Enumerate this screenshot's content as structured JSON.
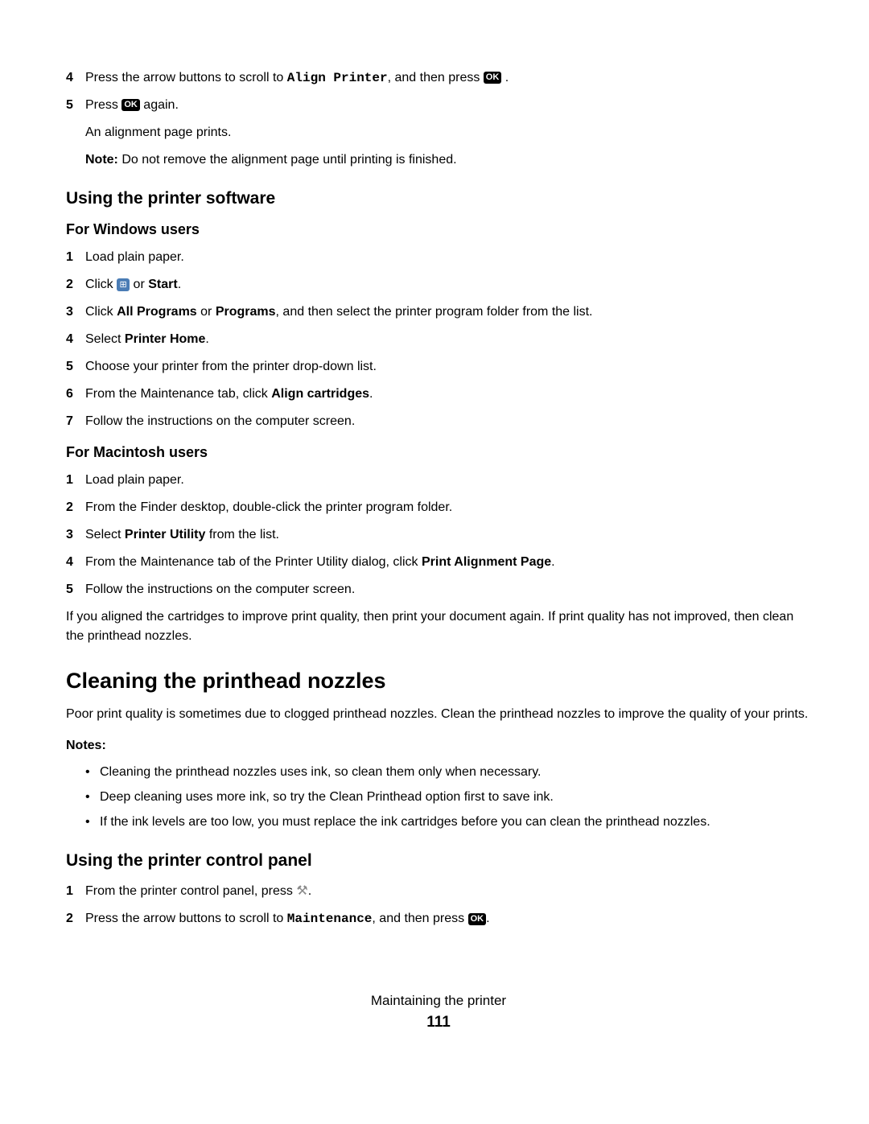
{
  "steps_top": {
    "s4": {
      "num": "4",
      "pre": "Press the arrow buttons to scroll to ",
      "mono": "Align Printer",
      "mid": ", and then press ",
      "ok": "OK",
      "post": " ."
    },
    "s5": {
      "num": "5",
      "pre": "Press ",
      "ok": "OK",
      "post": " again."
    },
    "s5_sub1": "An alignment page prints.",
    "s5_sub2_label": "Note: ",
    "s5_sub2_text": "Do not remove the alignment page until printing is finished."
  },
  "h2_software": "Using the printer software",
  "h3_windows": "For Windows users",
  "windows": {
    "s1": {
      "num": "1",
      "text": "Load plain paper."
    },
    "s2": {
      "num": "2",
      "pre": "Click ",
      "post_a": " or ",
      "bold": "Start",
      "post_b": "."
    },
    "s3": {
      "num": "3",
      "pre": "Click ",
      "b1": "All Programs",
      "mid": " or ",
      "b2": "Programs",
      "post": ", and then select the printer program folder from the list."
    },
    "s4": {
      "num": "4",
      "pre": "Select ",
      "bold": "Printer Home",
      "post": "."
    },
    "s5": {
      "num": "5",
      "text": "Choose your printer from the printer drop-down list."
    },
    "s6": {
      "num": "6",
      "pre": "From the Maintenance tab, click ",
      "bold": "Align cartridges",
      "post": "."
    },
    "s7": {
      "num": "7",
      "text": "Follow the instructions on the computer screen."
    }
  },
  "h3_mac": "For Macintosh users",
  "mac": {
    "s1": {
      "num": "1",
      "text": "Load plain paper."
    },
    "s2": {
      "num": "2",
      "text": "From the Finder desktop, double-click the printer program folder."
    },
    "s3": {
      "num": "3",
      "pre": "Select ",
      "bold": "Printer Utility",
      "post": " from the list."
    },
    "s4": {
      "num": "4",
      "pre": "From the Maintenance tab of the Printer Utility dialog, click ",
      "bold": "Print Alignment Page",
      "post": "."
    },
    "s5": {
      "num": "5",
      "text": "Follow the instructions on the computer screen."
    }
  },
  "para_after_mac": "If you aligned the cartridges to improve print quality, then print your document again. If print quality has not improved, then clean the printhead nozzles.",
  "h1_cleaning": "Cleaning the printhead nozzles",
  "para_cleaning": "Poor print quality is sometimes due to clogged printhead nozzles. Clean the printhead nozzles to improve the quality of your prints.",
  "notes_label": "Notes:",
  "notes": {
    "b1": "Cleaning the printhead nozzles uses ink, so clean them only when necessary.",
    "b2": "Deep cleaning uses more ink, so try the Clean Printhead option first to save ink.",
    "b3": "If the ink levels are too low, you must replace the ink cartridges before you can clean the printhead nozzles."
  },
  "h2_panel": "Using the printer control panel",
  "panel": {
    "s1": {
      "num": "1",
      "pre": "From the printer control panel, press ",
      "post": "."
    },
    "s2": {
      "num": "2",
      "pre": "Press the arrow buttons to scroll to ",
      "mono": "Maintenance",
      "mid": ", and then press ",
      "ok": "OK",
      "post": "."
    }
  },
  "footer": {
    "title": "Maintaining the printer",
    "page": "111"
  }
}
